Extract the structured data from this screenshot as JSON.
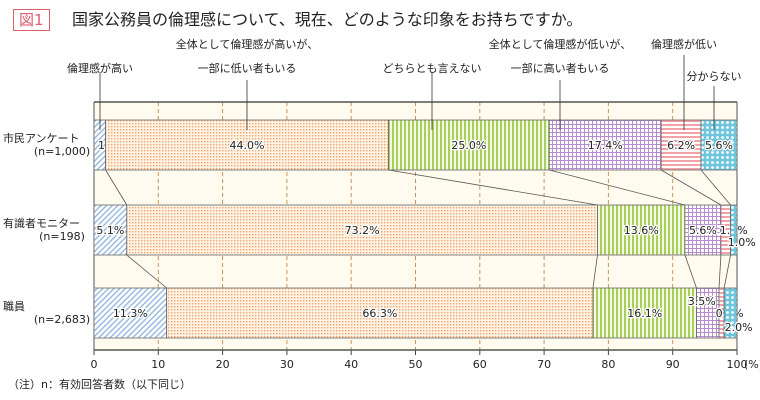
{
  "figure_label": "図1",
  "title": "国家公務員の倫理感について、現在、どのような印象をお持ちですか。",
  "note": "（注）n：有効回答者数（以下同じ）",
  "chart_data": {
    "type": "bar",
    "orientation": "horizontal-stacked-100",
    "categories": [
      [
        "市民アンケート",
        "(n=1,000)"
      ],
      [
        "有識者モニター",
        "(n=198)"
      ],
      [
        "職員",
        "(n=2,683)"
      ]
    ],
    "series": [
      {
        "name": [
          "倫理感が高い"
        ],
        "values": [
          1.8,
          5.1,
          11.3
        ],
        "color": "#8fb3dd"
      },
      {
        "name": [
          "全体として倫理感が高いが、",
          "一部に低い者もいる"
        ],
        "values": [
          44.0,
          73.2,
          66.3
        ],
        "color": "#f3a46a"
      },
      {
        "name": [
          "どちらとも言えない"
        ],
        "values": [
          25.0,
          13.6,
          16.1
        ],
        "color": "#a8cf5a"
      },
      {
        "name": [
          "全体として倫理感が低いが、",
          "一部に高い者もいる"
        ],
        "values": [
          17.4,
          5.6,
          3.5
        ],
        "color": "#b58ad0"
      },
      {
        "name": [
          "倫理感が低い"
        ],
        "values": [
          6.2,
          1.5,
          0.8
        ],
        "color": "#f08a92"
      },
      {
        "name": [
          "分からない"
        ],
        "values": [
          5.6,
          1.0,
          2.0
        ],
        "color": "#6fc6dc"
      }
    ],
    "xlim": [
      0,
      100
    ],
    "xticks": [
      "0",
      "10",
      "20",
      "30",
      "40",
      "50",
      "60",
      "70",
      "80",
      "90",
      "100"
    ],
    "x_unit": "(%)",
    "grid": true,
    "legend": "top, leader lines"
  }
}
